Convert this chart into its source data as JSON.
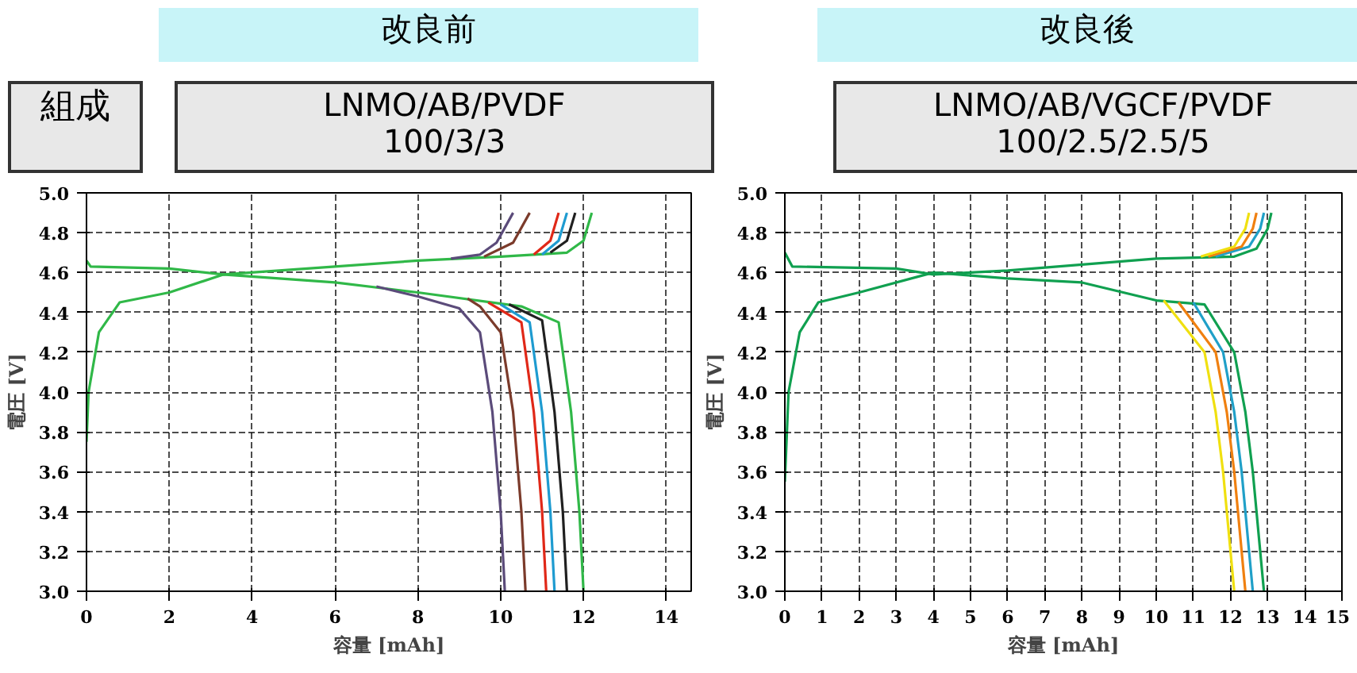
{
  "chart_data": [
    {
      "type": "line",
      "title": "改良前",
      "subtitle": "LNMO/AB/PVDF\n100/3/3",
      "annotations": [
        "組成"
      ],
      "xlabel": "容量 [mAh]",
      "ylabel": "電圧 [V]",
      "xlim": [
        0,
        14.6
      ],
      "ylim": [
        3.0,
        5.0
      ],
      "xticks": [
        0,
        2,
        4,
        6,
        8,
        10,
        12,
        14
      ],
      "yticks": [
        {
          "value": 3.0,
          "label": "3.0"
        },
        3.2,
        3.4,
        3.6,
        3.8,
        {
          "value": 4.0,
          "label": "4.0"
        },
        4.2,
        4.4,
        4.6,
        4.8,
        {
          "value": 5.0,
          "label": "5.0"
        }
      ],
      "grid": true,
      "series": [
        {
          "color": "#30b848",
          "x": [
            0,
            0.1,
            2,
            3.3,
            6,
            8,
            10,
            11.6,
            12.0,
            12.2
          ],
          "values": [
            4.66,
            4.63,
            4.62,
            4.59,
            4.63,
            4.66,
            4.68,
            4.7,
            4.76,
            4.9
          ]
        },
        {
          "color": "#202020",
          "x": [
            11.2,
            11.6,
            11.8
          ],
          "values": [
            4.7,
            4.76,
            4.9
          ]
        },
        {
          "color": "#1e9bd0",
          "x": [
            11.0,
            11.4,
            11.6
          ],
          "values": [
            4.69,
            4.76,
            4.9
          ]
        },
        {
          "color": "#e02818",
          "x": [
            10.8,
            11.2,
            11.4
          ],
          "values": [
            4.69,
            4.76,
            4.9
          ]
        },
        {
          "color": "#7b3b2b",
          "x": [
            9.6,
            10.3,
            10.7
          ],
          "values": [
            4.68,
            4.75,
            4.9
          ]
        },
        {
          "color": "#5b4b7a",
          "x": [
            8.8,
            9.5,
            9.9,
            10.3
          ],
          "values": [
            4.67,
            4.69,
            4.75,
            4.9
          ]
        },
        {
          "color": "#30b848",
          "x": [
            0,
            0.05,
            0.3,
            0.8,
            2,
            3.3,
            6,
            8,
            10.5,
            11.4,
            11.7,
            11.9,
            12.0
          ],
          "values": [
            3.75,
            4.0,
            4.3,
            4.45,
            4.5,
            4.59,
            4.55,
            4.5,
            4.43,
            4.35,
            3.9,
            3.4,
            3.0
          ]
        },
        {
          "color": "#202020",
          "x": [
            10.2,
            11.0,
            11.3,
            11.5,
            11.6
          ],
          "values": [
            4.44,
            4.36,
            3.9,
            3.4,
            3.0
          ]
        },
        {
          "color": "#1e9bd0",
          "x": [
            10.0,
            10.7,
            11.0,
            11.2,
            11.3
          ],
          "values": [
            4.44,
            4.35,
            3.9,
            3.4,
            3.0
          ]
        },
        {
          "color": "#e02818",
          "x": [
            9.7,
            10.5,
            10.8,
            11.0,
            11.1
          ],
          "values": [
            4.45,
            4.35,
            3.9,
            3.4,
            3.0
          ]
        },
        {
          "color": "#7b3b2b",
          "x": [
            9.2,
            9.5,
            10.0,
            10.3,
            10.5,
            10.6
          ],
          "values": [
            4.47,
            4.43,
            4.3,
            3.9,
            3.4,
            3.0
          ]
        },
        {
          "color": "#5b4b7a",
          "x": [
            7,
            8,
            9,
            9.5,
            9.8,
            10.0,
            10.1
          ],
          "values": [
            4.53,
            4.48,
            4.42,
            4.3,
            3.9,
            3.4,
            3.0
          ]
        }
      ]
    },
    {
      "type": "line",
      "title": "改良後",
      "subtitle": "LNMO/AB/VGCF/PVDF\n100/2.5/2.5/5",
      "xlabel": "容量 [mAh]",
      "ylabel": "電圧 [V]",
      "xlim": [
        0,
        15
      ],
      "ylim": [
        3.0,
        5.0
      ],
      "xticks": [
        0,
        1,
        2,
        3,
        4,
        5,
        6,
        7,
        8,
        9,
        10,
        11,
        12,
        13,
        14,
        15
      ],
      "yticks": [
        {
          "value": 3.0,
          "label": "3.0"
        },
        3.2,
        3.4,
        3.6,
        3.8,
        {
          "value": 4.0,
          "label": "4.0"
        },
        4.2,
        4.4,
        4.6,
        4.8,
        {
          "value": 5.0,
          "label": "5.0"
        }
      ],
      "grid": true,
      "series": [
        {
          "color": "#10a050",
          "x": [
            0,
            0.2,
            3,
            4,
            6,
            8,
            10,
            12.1,
            12.7,
            13.0,
            13.1
          ],
          "values": [
            4.7,
            4.63,
            4.62,
            4.59,
            4.61,
            4.64,
            4.67,
            4.68,
            4.72,
            4.82,
            4.9
          ]
        },
        {
          "color": "#20a0c8",
          "x": [
            11.6,
            12.5,
            12.8,
            12.9
          ],
          "values": [
            4.68,
            4.73,
            4.82,
            4.9
          ]
        },
        {
          "color": "#f08010",
          "x": [
            11.4,
            12.3,
            12.6,
            12.7
          ],
          "values": [
            4.68,
            4.73,
            4.82,
            4.9
          ]
        },
        {
          "color": "#f0e010",
          "x": [
            11.2,
            12.1,
            12.4,
            12.5
          ],
          "values": [
            4.68,
            4.73,
            4.82,
            4.9
          ]
        },
        {
          "color": "#10a050",
          "x": [
            0,
            0.1,
            0.4,
            0.9,
            2,
            4,
            6,
            8,
            10,
            11.3,
            12.1,
            12.4,
            12.6,
            12.9
          ],
          "values": [
            3.55,
            4.0,
            4.3,
            4.45,
            4.5,
            4.6,
            4.57,
            4.55,
            4.46,
            4.44,
            4.2,
            3.9,
            3.6,
            3.0
          ]
        },
        {
          "color": "#20a0c8",
          "x": [
            11.0,
            11.8,
            12.1,
            12.3,
            12.6
          ],
          "values": [
            4.45,
            4.2,
            3.9,
            3.6,
            3.0
          ]
        },
        {
          "color": "#f08010",
          "x": [
            10.6,
            11.6,
            11.9,
            12.1,
            12.4
          ],
          "values": [
            4.45,
            4.2,
            3.9,
            3.6,
            3.0
          ]
        },
        {
          "color": "#f0e010",
          "x": [
            10.2,
            11.3,
            11.6,
            11.8,
            12.1
          ],
          "values": [
            4.46,
            4.2,
            3.9,
            3.6,
            3.0
          ]
        }
      ]
    }
  ]
}
